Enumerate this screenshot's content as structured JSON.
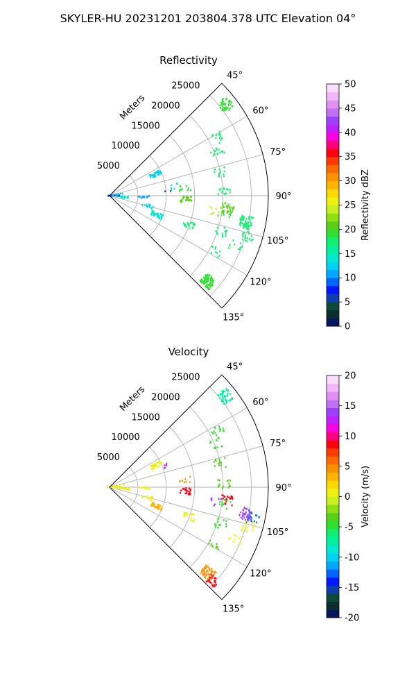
{
  "figure_title": "SKYLER-HU  20231201  203804.378 UTC Elevation 04°",
  "chart_data": [
    {
      "type": "polar-sector",
      "title": "Reflectivity",
      "theta_range_deg": [
        45,
        135
      ],
      "theta_ticks": [
        "45°",
        "60°",
        "75°",
        "90°",
        "105°",
        "120°",
        "135°"
      ],
      "theta_tick_values": [
        45,
        60,
        75,
        90,
        105,
        120,
        135
      ],
      "r_label": "Meters",
      "r_max": 28000,
      "r_ticks": [
        "5000",
        "10000",
        "15000",
        "20000",
        "25000"
      ],
      "r_tick_values": [
        5000,
        10000,
        15000,
        20000,
        25000
      ],
      "grid": true,
      "colorbar": {
        "label": "Reflectivity dBZ",
        "min": 0,
        "max": 50,
        "ticks": [
          "0",
          "5",
          "10",
          "15",
          "20",
          "25",
          "30",
          "35",
          "40",
          "45",
          "50"
        ],
        "tick_values": [
          0,
          5,
          10,
          15,
          20,
          25,
          30,
          35,
          40,
          45,
          50
        ],
        "colors": [
          "#0a1560",
          "#0c2f2e",
          "#0e4a3a",
          "#0d3fae",
          "#0018ff",
          "#0066ff",
          "#00a8ff",
          "#00d2f4",
          "#00e8d0",
          "#00f0a0",
          "#10f070",
          "#30e030",
          "#58d018",
          "#8ee010",
          "#c8f020",
          "#f0f010",
          "#ffd800",
          "#ffb400",
          "#ff9000",
          "#ff6a00",
          "#ff3a00",
          "#ff0010",
          "#ff0080",
          "#ff00e0",
          "#c020ff",
          "#a040ff",
          "#c070f0",
          "#e090f0",
          "#f0b8f8",
          "#fcdcfc"
        ]
      },
      "gates": [
        {
          "theta": 52,
          "r": 26000,
          "value": 19,
          "n": 45
        },
        {
          "theta": 62,
          "r": 21500,
          "value": 18,
          "n": 14
        },
        {
          "theta": 68,
          "r": 20500,
          "value": 18,
          "n": 14
        },
        {
          "theta": 78,
          "r": 20000,
          "value": 18,
          "n": 14
        },
        {
          "theta": 88,
          "r": 20200,
          "value": 18,
          "n": 14
        },
        {
          "theta": 98,
          "r": 20500,
          "value": 19,
          "n": 14
        },
        {
          "theta": 108,
          "r": 20700,
          "value": 18,
          "n": 14
        },
        {
          "theta": 118,
          "r": 21200,
          "value": 18,
          "n": 10
        },
        {
          "theta": 101,
          "r": 24500,
          "value": 18,
          "n": 55
        },
        {
          "theta": 96,
          "r": 21000,
          "value": 20,
          "n": 25
        },
        {
          "theta": 98,
          "r": 19000,
          "value": 24,
          "n": 10
        },
        {
          "theta": 106,
          "r": 25500,
          "value": 18,
          "n": 18
        },
        {
          "theta": 112,
          "r": 24000,
          "value": 18,
          "n": 10
        },
        {
          "theta": 110,
          "r": 15000,
          "value": 18,
          "n": 18
        },
        {
          "theta": 131,
          "r": 23000,
          "value": 19,
          "n": 85
        },
        {
          "theta": 93,
          "r": 13500,
          "value": 21,
          "n": 25
        },
        {
          "theta": 85,
          "r": 13500,
          "value": 19,
          "n": 10
        },
        {
          "theta": 82,
          "r": 11500,
          "value": 14,
          "n": 6
        },
        {
          "theta": 65,
          "r": 9000,
          "value": 13,
          "n": 35
        },
        {
          "theta": 112,
          "r": 9000,
          "value": 14,
          "n": 40
        },
        {
          "theta": 105,
          "r": 7000,
          "value": 12,
          "n": 15
        },
        {
          "theta": 92,
          "r": 6000,
          "value": 11,
          "n": 12
        },
        {
          "theta": 96,
          "r": 2500,
          "value": 14,
          "n": 20
        },
        {
          "theta": 88,
          "r": 700,
          "value": 6,
          "n": 18
        },
        {
          "theta": 80,
          "r": 1500,
          "value": 13,
          "n": 10
        },
        {
          "theta": 86,
          "r": 10500,
          "value": 5,
          "n": 2
        }
      ]
    },
    {
      "type": "polar-sector",
      "title": "Velocity",
      "theta_range_deg": [
        45,
        135
      ],
      "theta_ticks": [
        "45°",
        "60°",
        "75°",
        "90°",
        "105°",
        "120°",
        "135°"
      ],
      "theta_tick_values": [
        45,
        60,
        75,
        90,
        105,
        120,
        135
      ],
      "r_label": "Meters",
      "r_max": 28000,
      "r_ticks": [
        "5000",
        "10000",
        "15000",
        "20000",
        "25000"
      ],
      "r_tick_values": [
        5000,
        10000,
        15000,
        20000,
        25000
      ],
      "grid": true,
      "colorbar": {
        "label": "Velocity (m/s)",
        "min": -20,
        "max": 20,
        "ticks": [
          "-20",
          "-15",
          "-10",
          "-5",
          "0",
          "5",
          "10",
          "15",
          "20"
        ],
        "tick_values": [
          -20,
          -15,
          -10,
          -5,
          0,
          5,
          10,
          15,
          20
        ],
        "colors": [
          "#0a1560",
          "#0c2f2e",
          "#0e4a3a",
          "#0d3fae",
          "#0018ff",
          "#0066ff",
          "#00a8ff",
          "#00d2f4",
          "#00e8d0",
          "#00f0a0",
          "#10f070",
          "#30e030",
          "#58d018",
          "#8ee010",
          "#c8f020",
          "#f0f010",
          "#ffd800",
          "#ffb400",
          "#ff9000",
          "#ff6a00",
          "#ff3a00",
          "#ff0010",
          "#ff0080",
          "#ff00e0",
          "#c020ff",
          "#a040ff",
          "#c070f0",
          "#e090f0",
          "#f0b8f8",
          "#fcdcfc"
        ]
      },
      "gates": [
        {
          "theta": 52,
          "r": 26000,
          "value": -8,
          "n": 45
        },
        {
          "theta": 62,
          "r": 21500,
          "value": -5,
          "n": 14
        },
        {
          "theta": 68,
          "r": 20500,
          "value": -5,
          "n": 14
        },
        {
          "theta": 78,
          "r": 20000,
          "value": -4,
          "n": 14
        },
        {
          "theta": 88,
          "r": 20200,
          "value": -3,
          "n": 14
        },
        {
          "theta": 98,
          "r": 20500,
          "value": -5,
          "n": 14
        },
        {
          "theta": 108,
          "r": 20700,
          "value": -5,
          "n": 14
        },
        {
          "theta": 118,
          "r": 21200,
          "value": -3,
          "n": 10
        },
        {
          "theta": 101,
          "r": 24500,
          "value": 14,
          "n": 40
        },
        {
          "theta": 102,
          "r": 26000,
          "value": -13,
          "n": 16
        },
        {
          "theta": 96,
          "r": 21000,
          "value": 8,
          "n": 20
        },
        {
          "theta": 98,
          "r": 19000,
          "value": 14,
          "n": 8
        },
        {
          "theta": 106,
          "r": 25500,
          "value": 1,
          "n": 16
        },
        {
          "theta": 112,
          "r": 24000,
          "value": 1,
          "n": 10
        },
        {
          "theta": 110,
          "r": 15000,
          "value": 1,
          "n": 18
        },
        {
          "theta": 131,
          "r": 23000,
          "value": 5,
          "n": 60
        },
        {
          "theta": 133,
          "r": 24500,
          "value": 9,
          "n": 30
        },
        {
          "theta": 93,
          "r": 13500,
          "value": 9,
          "n": 25
        },
        {
          "theta": 85,
          "r": 13500,
          "value": 4,
          "n": 8
        },
        {
          "theta": 65,
          "r": 9000,
          "value": 1,
          "n": 30
        },
        {
          "theta": 70,
          "r": 10500,
          "value": 12,
          "n": 5
        },
        {
          "theta": 112,
          "r": 9000,
          "value": 3,
          "n": 35
        },
        {
          "theta": 105,
          "r": 7000,
          "value": 1,
          "n": 15
        },
        {
          "theta": 92,
          "r": 6000,
          "value": 1,
          "n": 12
        },
        {
          "theta": 96,
          "r": 2500,
          "value": 1,
          "n": 18
        },
        {
          "theta": 88,
          "r": 700,
          "value": 0,
          "n": 16
        },
        {
          "theta": 80,
          "r": 1500,
          "value": 1,
          "n": 8
        }
      ]
    }
  ]
}
